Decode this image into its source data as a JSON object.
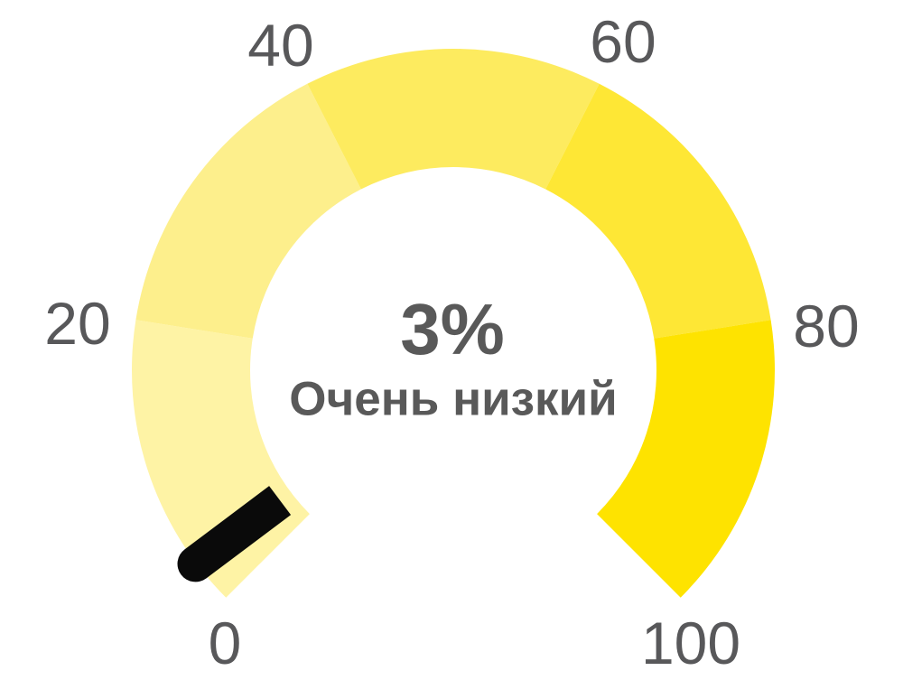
{
  "chart_data": {
    "type": "gauge",
    "value": 3,
    "value_label": "3%",
    "status_label": "Очень низкий",
    "min": 0,
    "max": 100,
    "start_angle_deg": 225,
    "end_angle_deg": -45,
    "tick_labels": [
      "0",
      "20",
      "40",
      "60",
      "80",
      "100"
    ],
    "segments": [
      {
        "from": 0,
        "to": 20,
        "color": "#fef3a5"
      },
      {
        "from": 20,
        "to": 40,
        "color": "#fdef8c"
      },
      {
        "from": 40,
        "to": 60,
        "color": "#fdeb5f"
      },
      {
        "from": 60,
        "to": 80,
        "color": "#fee735"
      },
      {
        "from": 80,
        "to": 100,
        "color": "#fee300"
      }
    ],
    "needle": {
      "value": 3,
      "color": "#0a0a0a"
    },
    "colors": {
      "value_text": "#595959",
      "status_text": "#595959",
      "tick_text": "#58585a",
      "background": "#ffffff"
    },
    "legend": "none",
    "grid": "off"
  }
}
